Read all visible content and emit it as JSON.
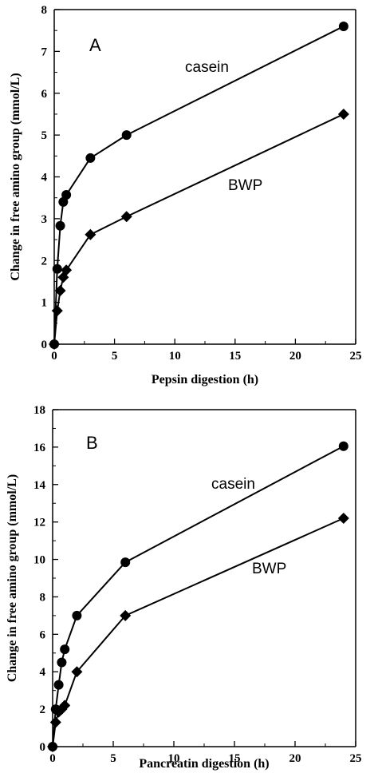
{
  "chart_data": [
    {
      "type": "line",
      "panel": "A",
      "xlabel": "Pepsin digestion (h)",
      "ylabel": "Change in free amino group (mmol/L)",
      "xlim": [
        0,
        25
      ],
      "ylim": [
        0,
        8
      ],
      "xticks": [
        0,
        5,
        10,
        15,
        20,
        25
      ],
      "yticks": [
        0,
        1,
        2,
        3,
        4,
        5,
        6,
        7,
        8
      ],
      "grid": false,
      "series": [
        {
          "name": "casein",
          "marker": "circle",
          "x": [
            0,
            0.25,
            0.5,
            0.75,
            1,
            3,
            6,
            24
          ],
          "y": [
            0,
            1.8,
            2.83,
            3.4,
            3.57,
            4.45,
            5.0,
            7.6
          ]
        },
        {
          "name": "BWP",
          "marker": "diamond",
          "x": [
            0,
            0.25,
            0.5,
            0.75,
            1,
            3,
            6,
            24
          ],
          "y": [
            0,
            0.8,
            1.28,
            1.6,
            1.77,
            2.62,
            3.05,
            5.5
          ]
        }
      ]
    },
    {
      "type": "line",
      "panel": "B",
      "xlabel": "Pancreatin digestion (h)",
      "ylabel": "Change in free amino group (mmol/L)",
      "xlim": [
        0,
        25
      ],
      "ylim": [
        0,
        18
      ],
      "xticks": [
        0,
        5,
        10,
        15,
        20,
        25
      ],
      "yticks": [
        0,
        2,
        4,
        6,
        8,
        10,
        12,
        14,
        16,
        18
      ],
      "grid": false,
      "series": [
        {
          "name": "casein",
          "marker": "circle",
          "x": [
            0,
            0.25,
            0.5,
            0.75,
            1,
            2,
            6,
            24
          ],
          "y": [
            0,
            2.0,
            3.3,
            4.5,
            5.2,
            7.0,
            9.85,
            16.05
          ]
        },
        {
          "name": "BWP",
          "marker": "diamond",
          "x": [
            0,
            0.25,
            0.5,
            0.75,
            1,
            2,
            6,
            24
          ],
          "y": [
            0,
            1.3,
            1.85,
            2.0,
            2.2,
            4.0,
            7.0,
            12.2
          ]
        }
      ]
    }
  ]
}
